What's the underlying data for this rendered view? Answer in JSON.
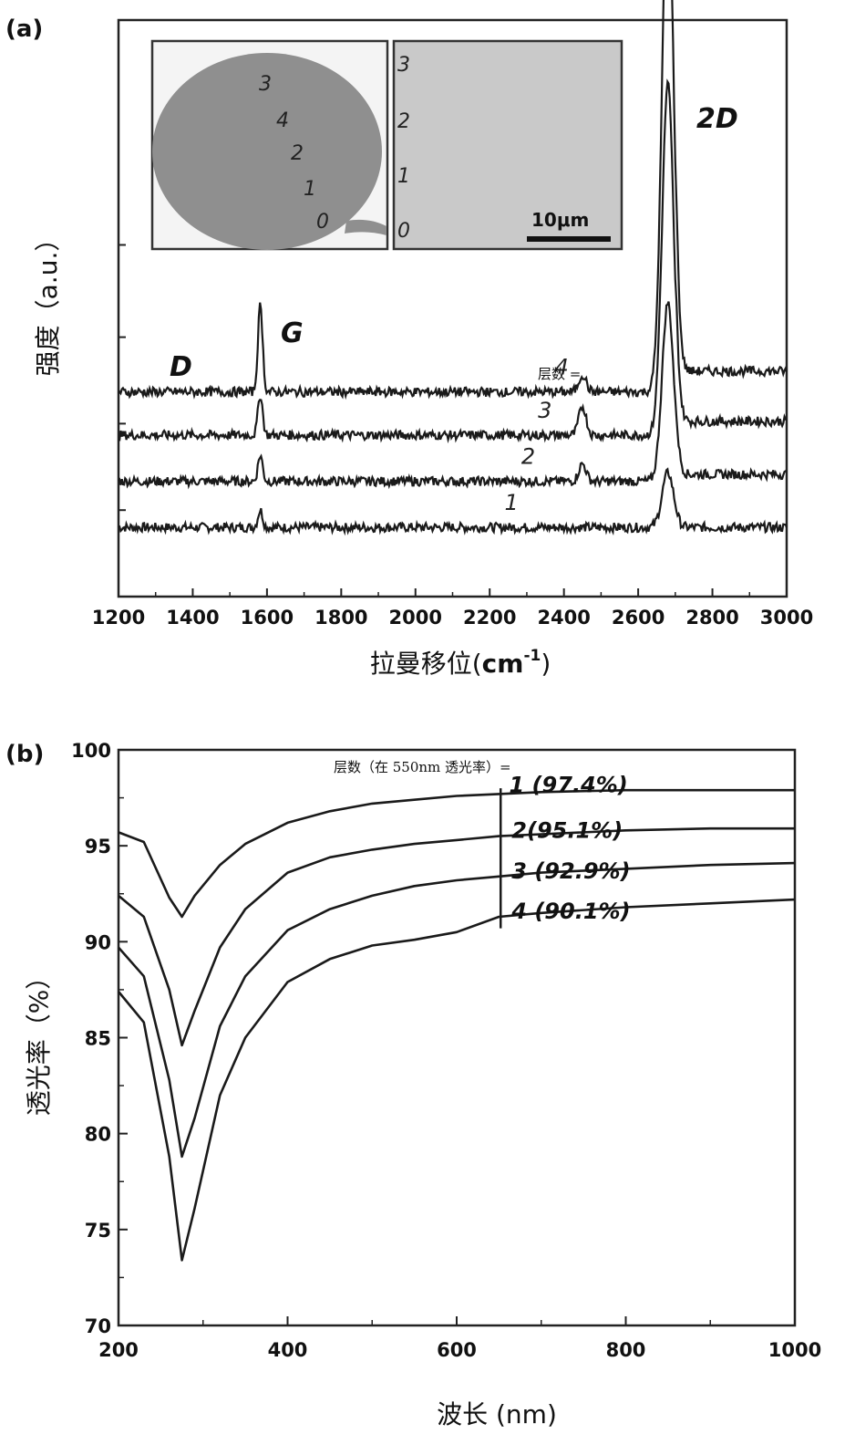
{
  "chart_data": [
    {
      "type": "line",
      "panel_label": "(a)",
      "xlabel": "拉曼移位(cm-1)",
      "xlabel_main": "拉曼移位(",
      "xlabel_unit": "cm",
      "xlabel_sup": "-1",
      "xlabel_close": ")",
      "ylabel": "强度（a.u.）",
      "xlim": [
        1200,
        3000
      ],
      "xticks": [
        "1200",
        "1400",
        "1600",
        "1800",
        "2000",
        "2200",
        "2400",
        "2600",
        "2800",
        "3000"
      ],
      "ylim": [
        0,
        1
      ],
      "peak_labels": [
        "D",
        "G",
        "2D"
      ],
      "layer_label": "层数 =",
      "series": [
        {
          "name": "1",
          "label": "1",
          "baseline": 0.12,
          "g_peak": 0.03,
          "band2450": 0.0,
          "peak2d": 0.095
        },
        {
          "name": "2",
          "label": "2",
          "baseline": 0.2,
          "g_peak": 0.045,
          "band2450": 0.03,
          "peak2d": 0.31
        },
        {
          "name": "3",
          "label": "3",
          "baseline": 0.28,
          "g_peak": 0.07,
          "band2450": 0.05,
          "peak2d": 0.61
        },
        {
          "name": "4",
          "label": "4",
          "baseline": 0.355,
          "g_peak": 0.15,
          "band2450": 0.03,
          "peak2d": 0.9
        }
      ],
      "inset": {
        "left_numbers": [
          "3",
          "4",
          "2",
          "1",
          "0"
        ],
        "right_numbers": [
          "3",
          "2",
          "1",
          "0"
        ],
        "scale_bar": "10μm"
      }
    },
    {
      "type": "line",
      "panel_label": "(b)",
      "xlabel": "波长 (nm)",
      "ylabel": "透光率（%）",
      "xlim": [
        200,
        1000
      ],
      "ylim": [
        70,
        100
      ],
      "xticks": [
        "200",
        "400",
        "600",
        "800",
        "1000"
      ],
      "yticks": [
        "70",
        "75",
        "80",
        "85",
        "90",
        "95",
        "100"
      ],
      "legend_title": "层数（在 550nm 透光率）=",
      "x": [
        200,
        230,
        260,
        275,
        290,
        320,
        350,
        400,
        450,
        500,
        550,
        600,
        650,
        700,
        800,
        900,
        1000
      ],
      "series": [
        {
          "name": "1 (97.4%)",
          "values": [
            95.7,
            95.2,
            92.3,
            91.3,
            92.4,
            94.0,
            95.1,
            96.2,
            96.8,
            97.2,
            97.4,
            97.6,
            97.7,
            97.8,
            97.9,
            97.9,
            97.9
          ]
        },
        {
          "name": "2(95.1%)",
          "values": [
            92.4,
            91.3,
            87.5,
            84.6,
            86.4,
            89.7,
            91.7,
            93.6,
            94.4,
            94.8,
            95.1,
            95.3,
            95.5,
            95.6,
            95.8,
            95.9,
            95.9
          ]
        },
        {
          "name": "3 (92.9%)",
          "values": [
            89.7,
            88.2,
            82.8,
            78.8,
            80.8,
            85.6,
            88.2,
            90.6,
            91.7,
            92.4,
            92.9,
            93.2,
            93.4,
            93.6,
            93.8,
            94.0,
            94.1
          ]
        },
        {
          "name": "4 (90.1%)",
          "values": [
            87.4,
            85.8,
            78.8,
            73.4,
            76.1,
            82.0,
            85.0,
            87.9,
            89.1,
            89.8,
            90.1,
            90.5,
            91.3,
            91.5,
            91.8,
            92.0,
            92.2
          ]
        }
      ]
    }
  ]
}
